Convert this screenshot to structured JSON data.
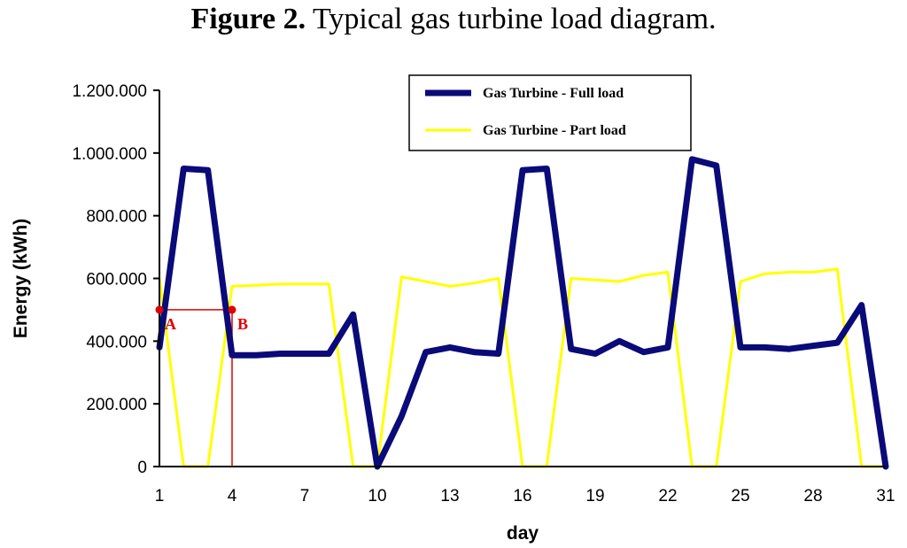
{
  "figure": {
    "label": "Figure 2.",
    "caption": " Typical gas turbine load diagram."
  },
  "chart_data": {
    "type": "line",
    "xlabel": "day",
    "ylabel": "Energy (kWh)",
    "xlim": [
      1,
      31
    ],
    "ylim": [
      0,
      1200000
    ],
    "x_ticks": [
      "1",
      "4",
      "7",
      "10",
      "13",
      "16",
      "19",
      "22",
      "25",
      "28",
      "31"
    ],
    "x_tick_values": [
      1,
      4,
      7,
      10,
      13,
      16,
      19,
      22,
      25,
      28,
      31
    ],
    "y_ticks": [
      "0",
      "200.000",
      "400.000",
      "600.000",
      "800.000",
      "1.000.000",
      "1.200.000"
    ],
    "y_tick_values": [
      0,
      200000,
      400000,
      600000,
      800000,
      1000000,
      1200000
    ],
    "legend_position": "top-right",
    "grid": false,
    "series": [
      {
        "name": "Gas Turbine - Full load",
        "color": "#0a0a78",
        "x": [
          1,
          2,
          3,
          4,
          5,
          6,
          7,
          8,
          9,
          10,
          11,
          12,
          13,
          14,
          15,
          16,
          17,
          18,
          19,
          20,
          21,
          22,
          23,
          24,
          25,
          26,
          27,
          28,
          29,
          30,
          31
        ],
        "values": [
          380000,
          950000,
          945000,
          355000,
          355000,
          360000,
          360000,
          360000,
          485000,
          0,
          160000,
          365000,
          380000,
          365000,
          360000,
          945000,
          950000,
          375000,
          360000,
          400000,
          365000,
          380000,
          980000,
          960000,
          380000,
          380000,
          375000,
          385000,
          395000,
          515000,
          0
        ]
      },
      {
        "name": "Gas Turbine - Part load",
        "color": "#ffff00",
        "x": [
          1,
          2,
          3,
          4,
          5,
          6,
          7,
          8,
          9,
          10,
          11,
          12,
          13,
          14,
          15,
          16,
          17,
          18,
          19,
          20,
          21,
          22,
          23,
          24,
          25,
          26,
          27,
          28,
          29,
          30,
          31
        ],
        "values": [
          600000,
          0,
          0,
          575000,
          578000,
          582000,
          582000,
          582000,
          0,
          0,
          605000,
          590000,
          575000,
          585000,
          600000,
          0,
          0,
          600000,
          595000,
          590000,
          610000,
          620000,
          0,
          0,
          590000,
          615000,
          620000,
          620000,
          630000,
          0,
          0
        ]
      }
    ],
    "annotations": {
      "level": 500000,
      "points": [
        {
          "label": "A",
          "x": 1
        },
        {
          "label": "B",
          "x": 4
        }
      ],
      "color": "#e00000"
    }
  }
}
